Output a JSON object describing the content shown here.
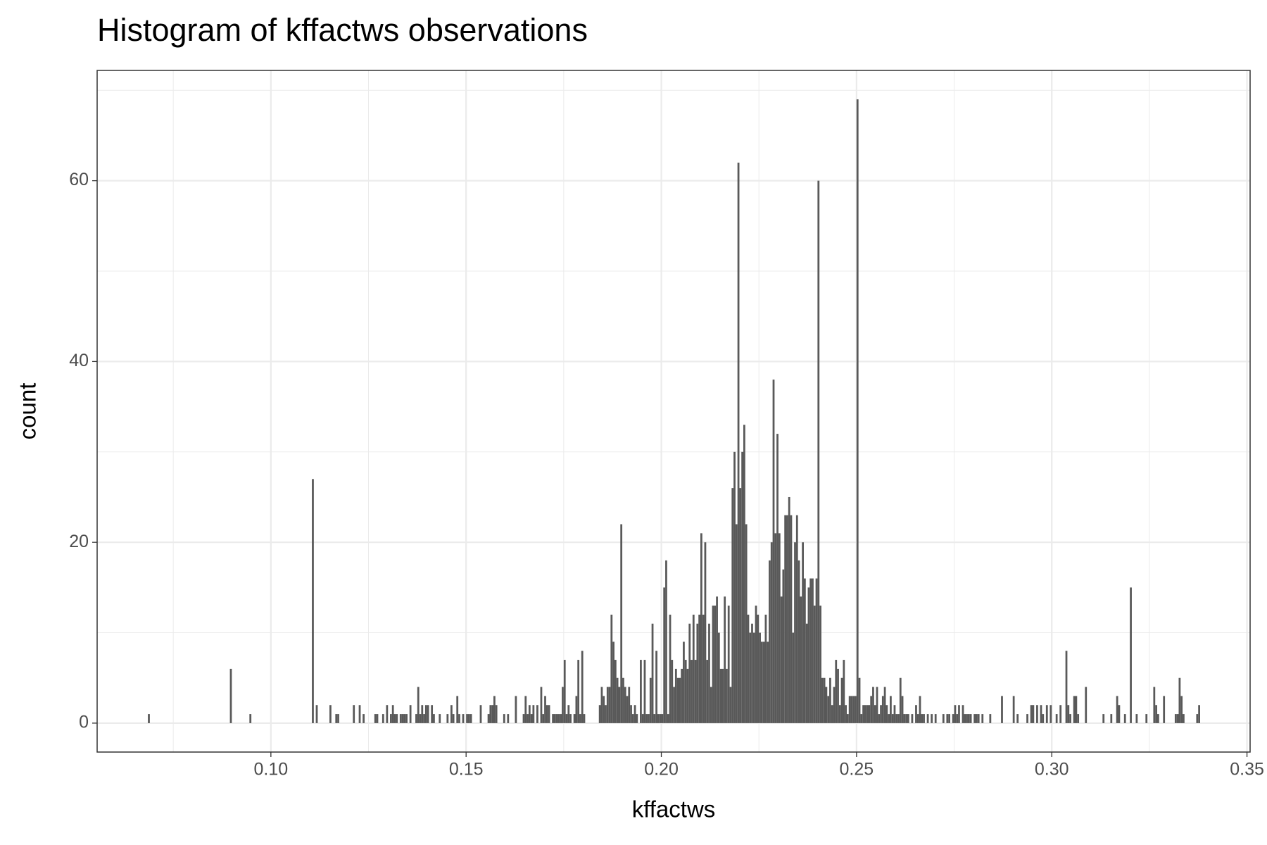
{
  "chart_data": {
    "type": "histogram",
    "title": "Histogram of kffactws observations",
    "x_label": "kffactws",
    "y_label": "count",
    "color": "#595959",
    "grid": true,
    "xlim": [
      0.0555,
      0.3508
    ],
    "ylim": [
      -3.2,
      72.2
    ],
    "xticks": [
      {
        "value": 0.1,
        "label": "0.10"
      },
      0.15,
      {
        "value": 0.2,
        "label": "0.20"
      },
      0.25,
      {
        "value": 0.3,
        "label": "0.30"
      },
      0.35
    ],
    "yticks": [
      0,
      20,
      40,
      60
    ],
    "bins": [
      0.0685,
      0.069,
      0.0895,
      0.09,
      0.0945,
      0.095,
      0.1105,
      0.111,
      0.1115,
      0.112,
      0.115,
      0.1155,
      0.1165,
      0.117,
      0.1175,
      0.121,
      0.1215,
      0.1225,
      0.123,
      0.1235,
      0.124,
      0.1265,
      0.127,
      0.1275,
      0.1285,
      0.129,
      0.1295,
      0.13,
      0.1305,
      0.131,
      0.1315,
      0.132,
      0.1325,
      0.133,
      0.1335,
      0.134,
      0.1345,
      0.135,
      0.1355,
      0.136,
      0.137,
      0.1375,
      0.138,
      0.1385,
      0.139,
      0.1395,
      0.14,
      0.1405,
      0.141,
      0.1415,
      0.142,
      0.143,
      0.1435,
      0.145,
      0.1455,
      0.146,
      0.1465,
      0.147,
      0.1475,
      0.148,
      0.1485,
      0.149,
      0.1495,
      0.15,
      0.1505,
      0.151,
      0.1515,
      0.1535,
      0.154,
      0.1555,
      0.156,
      0.1565,
      0.157,
      0.1575,
      0.158,
      0.1595,
      0.16,
      0.1605,
      0.161,
      0.1625,
      0.163,
      0.1645,
      0.165,
      0.1655,
      0.166,
      0.1665,
      0.167,
      0.1675,
      0.168,
      0.1685,
      0.169,
      0.1695,
      0.17,
      0.1705,
      0.171,
      0.1715,
      0.172,
      0.1725,
      0.173,
      0.1735,
      0.174,
      0.1745,
      0.175,
      0.1755,
      0.176,
      0.1765,
      0.177,
      0.1775,
      0.178,
      0.1785,
      0.179,
      0.1795,
      0.18,
      0.1805,
      0.184,
      0.1845,
      0.185,
      0.1855,
      0.186,
      0.1865,
      0.187,
      0.1875,
      0.188,
      0.1885,
      0.189,
      0.1895,
      0.19,
      0.1905,
      0.191,
      0.1915,
      0.192,
      0.1925,
      0.193,
      0.1935,
      0.194,
      0.1945,
      0.195,
      0.1955,
      0.196,
      0.1965,
      0.197,
      0.1975,
      0.198,
      0.1985,
      0.199,
      0.1995,
      0.2,
      0.2005,
      0.201,
      0.2015,
      0.202,
      0.2025,
      0.203,
      0.2035,
      0.204,
      0.2045,
      0.205,
      0.2055,
      0.206,
      0.2065,
      0.207,
      0.2075,
      0.208,
      0.2085,
      0.209,
      0.2095,
      0.21,
      0.2105,
      0.211,
      0.2115,
      0.212,
      0.2125,
      0.213,
      0.2135,
      0.214,
      0.2145,
      0.215,
      0.2155,
      0.216,
      0.2165,
      0.217,
      0.2175,
      0.218,
      0.2185,
      0.219,
      0.2195,
      0.22,
      0.2205,
      0.221,
      0.2215,
      0.222,
      0.2225,
      0.223,
      0.2235,
      0.224,
      0.2245,
      0.225,
      0.2255,
      0.226,
      0.2265,
      0.227,
      0.2275,
      0.228,
      0.2285,
      0.229,
      0.2295,
      0.23,
      0.2305,
      0.231,
      0.2315,
      0.232,
      0.2325,
      0.233,
      0.2335,
      0.234,
      0.2345,
      0.235,
      0.2355,
      0.236,
      0.2365,
      0.237,
      0.2375,
      0.238,
      0.2385,
      0.239,
      0.2395,
      0.24,
      0.2405,
      0.241,
      0.2415,
      0.242,
      0.2425,
      0.243,
      0.2435,
      0.244,
      0.2445,
      0.245,
      0.2455,
      0.246,
      0.2465,
      0.247,
      0.2475,
      0.248,
      0.2485,
      0.249,
      0.2495,
      0.25,
      0.2505,
      0.251,
      0.2515,
      0.252,
      0.2525,
      0.253,
      0.2535,
      0.254,
      0.2545,
      0.255,
      0.2555,
      0.256,
      0.2565,
      0.257,
      0.2575,
      0.258,
      0.2585,
      0.259,
      0.2595,
      0.26,
      0.2605,
      0.261,
      0.2615,
      0.262,
      0.2625,
      0.263,
      0.2635,
      0.264,
      0.2645,
      0.265,
      0.2655,
      0.266,
      0.2665,
      0.267,
      0.2675,
      0.268,
      0.2685,
      0.269,
      0.2695,
      0.27,
      0.2705,
      0.272,
      0.2725,
      0.273,
      0.2735,
      0.274,
      0.2745,
      0.275,
      0.2755,
      0.276,
      0.2765,
      0.277,
      0.2775,
      0.278,
      0.2785,
      0.279,
      0.2795,
      0.28,
      0.2805,
      0.281,
      0.2815,
      0.282,
      0.2825,
      0.284,
      0.2845,
      0.287,
      0.2875,
      0.29,
      0.2905,
      0.291,
      0.2915,
      0.2935,
      0.294,
      0.2945,
      0.295,
      0.2955,
      0.296,
      0.2965,
      0.297,
      0.2975,
      0.298,
      0.2985,
      0.299,
      0.2995,
      0.3,
      0.301,
      0.3015,
      0.302,
      0.3025,
      0.3035,
      0.304,
      0.3045,
      0.305,
      0.3055,
      0.306,
      0.3065,
      0.307,
      0.3085,
      0.309,
      0.313,
      0.3135,
      0.315,
      0.3155,
      0.3165,
      0.317,
      0.3175,
      0.3185,
      0.319,
      0.32,
      0.3205,
      0.3215,
      0.322,
      0.324,
      0.3245,
      0.326,
      0.3265,
      0.327,
      0.3275,
      0.3285,
      0.329,
      0.3315,
      0.332,
      0.3325,
      0.333,
      0.3335,
      0.334,
      0.337,
      0.3375,
      0.338
    ],
    "counts": [
      1,
      0,
      6,
      0,
      1,
      0,
      27,
      0,
      2,
      0,
      2,
      0,
      1,
      1,
      0,
      2,
      0,
      2,
      0,
      1,
      0,
      1,
      1,
      0,
      1,
      0,
      2,
      0,
      1,
      2,
      1,
      1,
      0,
      1,
      1,
      1,
      1,
      0,
      2,
      0,
      1,
      4,
      1,
      2,
      1,
      2,
      2,
      0,
      2,
      1,
      0,
      1,
      0,
      1,
      0,
      2,
      1,
      0,
      3,
      1,
      0,
      1,
      0,
      1,
      1,
      1,
      0,
      2,
      0,
      1,
      2,
      2,
      3,
      2,
      0,
      1,
      0,
      1,
      0,
      3,
      0,
      1,
      3,
      1,
      2,
      1,
      2,
      0,
      2,
      0,
      4,
      1,
      3,
      2,
      2,
      0,
      1,
      1,
      1,
      1,
      1,
      4,
      7,
      1,
      2,
      1,
      0,
      1,
      3,
      7,
      1,
      8,
      1,
      0,
      2,
      4,
      3,
      2,
      4,
      4,
      12,
      9,
      7,
      5,
      4,
      22,
      5,
      4,
      3,
      4,
      2,
      1,
      2,
      1,
      0,
      7,
      1,
      7,
      1,
      1,
      5,
      11,
      1,
      8,
      1,
      1,
      1,
      15,
      18,
      1,
      12,
      7,
      4,
      6,
      5,
      5,
      6,
      9,
      7,
      6,
      11,
      7,
      12,
      7,
      11,
      12,
      21,
      12,
      20,
      7,
      11,
      4,
      13,
      13,
      14,
      10,
      6,
      6,
      14,
      6,
      13,
      4,
      26,
      30,
      22,
      62,
      26,
      30,
      33,
      22,
      12,
      10,
      11,
      10,
      13,
      12,
      10,
      9,
      9,
      12,
      9,
      18,
      20,
      38,
      21,
      32,
      21,
      14,
      17,
      23,
      23,
      25,
      23,
      10,
      20,
      23,
      18,
      14,
      20,
      16,
      11,
      15,
      16,
      16,
      13,
      16,
      60,
      13,
      5,
      5,
      4,
      3,
      5,
      2,
      4,
      7,
      6,
      2,
      5,
      7,
      2,
      1,
      3,
      3,
      3,
      3,
      69,
      5,
      1,
      2,
      2,
      2,
      2,
      3,
      4,
      2,
      4,
      1,
      2,
      3,
      4,
      2,
      1,
      3,
      1,
      2,
      1,
      1,
      5,
      3,
      1,
      1,
      1,
      0,
      1,
      0,
      2,
      1,
      3,
      1,
      1,
      0,
      1,
      0,
      1,
      0,
      1,
      0,
      1,
      0,
      1,
      1,
      0,
      1,
      2,
      1,
      2,
      0,
      2,
      1,
      1,
      1,
      1,
      0,
      1,
      1,
      1,
      0,
      1,
      0,
      1,
      0,
      3,
      0,
      3,
      0,
      1,
      0,
      1,
      0,
      2,
      2,
      0,
      2,
      0,
      2,
      1,
      0,
      2,
      0,
      2,
      0,
      1,
      0,
      2,
      0,
      8,
      2,
      1,
      0,
      3,
      3,
      1,
      0,
      4,
      0,
      1,
      0,
      1,
      0,
      3,
      2,
      0,
      1,
      0,
      15,
      0,
      1,
      0,
      1,
      0,
      4,
      2,
      1,
      0,
      3,
      0,
      1,
      1,
      5,
      3,
      1,
      0,
      1,
      2
    ]
  }
}
